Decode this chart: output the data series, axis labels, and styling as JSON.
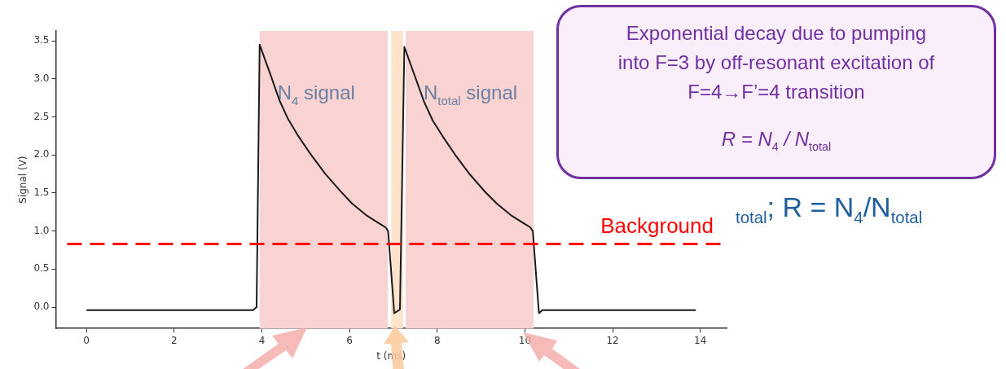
{
  "chart_data": {
    "type": "line",
    "xlabel": "t (ms)",
    "ylabel": "Signal (V)",
    "xlim": [
      -0.7,
      14.6
    ],
    "ylim": [
      -0.28,
      3.63
    ],
    "xticks": [
      0,
      2,
      4,
      6,
      8,
      10,
      12,
      14
    ],
    "yticks": [
      {
        "value": 0,
        "label": "0.0"
      },
      {
        "value": 0.5,
        "label": "0.5"
      },
      {
        "value": 1,
        "label": "1.0"
      },
      {
        "value": 1.5,
        "label": "1.5"
      },
      {
        "value": 2,
        "label": "2.0"
      },
      {
        "value": 2.5,
        "label": "2.5"
      },
      {
        "value": 3,
        "label": "3.0"
      },
      {
        "value": 3.5,
        "label": "3.5"
      }
    ],
    "grid": false,
    "legend": false,
    "marker": "none",
    "line_style": "solid",
    "series": [
      {
        "color": "#1a1a1a",
        "x": [
          0,
          3.8,
          3.88,
          3.95,
          4.2,
          4.4,
          4.6,
          4.83,
          5.1,
          5.45,
          5.8,
          6.06,
          6.4,
          6.68,
          6.82,
          6.88,
          7.02,
          7.15,
          7.25,
          7.5,
          7.7,
          7.9,
          8.13,
          8.4,
          8.75,
          9.1,
          9.36,
          9.7,
          9.98,
          10.12,
          10.18,
          10.32,
          10.4,
          13.9
        ],
        "values": [
          -0.04,
          -0.04,
          0.0,
          3.45,
          3.05,
          2.72,
          2.47,
          2.25,
          2.02,
          1.75,
          1.52,
          1.36,
          1.2,
          1.1,
          1.05,
          1.0,
          -0.08,
          -0.03,
          3.42,
          3.02,
          2.7,
          2.45,
          2.24,
          2.01,
          1.74,
          1.51,
          1.36,
          1.2,
          1.1,
          1.05,
          1.0,
          -0.08,
          -0.04,
          -0.04
        ]
      }
    ],
    "bands": [
      {
        "axis": "x",
        "from": 3.95,
        "to": 6.87,
        "label": "N$_{4}$ signal",
        "color": "#f9d3d1"
      },
      {
        "axis": "x",
        "from": 6.95,
        "to": 7.22,
        "color": "#fde3cc"
      },
      {
        "axis": "x",
        "from": 7.28,
        "to": 10.2,
        "label": "N$_{total}$ signal",
        "color": "#f9d3d1"
      }
    ],
    "ref_lines": [
      {
        "axis": "y",
        "value": 0.83,
        "label": "Background",
        "color": "#ff0000",
        "line_style": "dashed"
      }
    ],
    "annotations": [
      "Exponential decay due to pumping into F=3 by off-resonant excitation of F=4→F’=4 transition",
      "R = N$_{4}$ / N$_{total}$",
      "$_{total}$; R = N$_{4}$/N$_{total}$"
    ]
  }
}
